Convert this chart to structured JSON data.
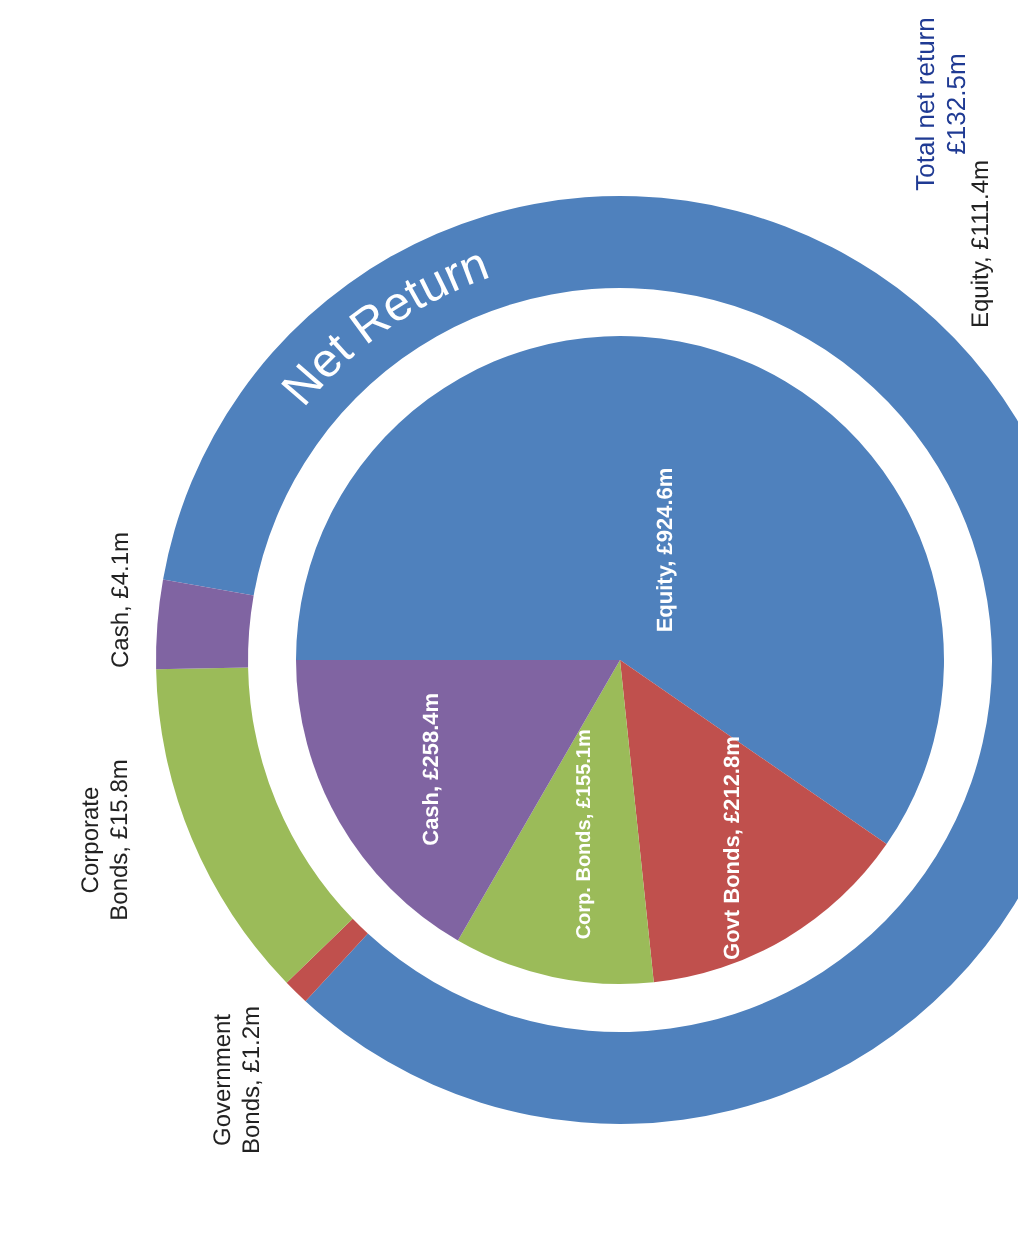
{
  "chart_data": [
    {
      "type": "donut",
      "title": "Net Return",
      "annotations": [
        "Total net return\n£132.5m"
      ],
      "categories": [
        "Equity",
        "Government Bonds",
        "Corporate Bonds",
        "Cash"
      ],
      "values": [
        111.4,
        1.2,
        15.8,
        4.1
      ],
      "value_labels": [
        "£111.4m",
        "£1.2m",
        "£15.8m",
        "£4.1m"
      ],
      "colors": [
        "#4f81bd",
        "#c0504d",
        "#9bbb59",
        "#8064a2"
      ]
    },
    {
      "type": "pie",
      "categories": [
        "Equity",
        "Govt Bonds",
        "Corp. Bonds",
        "Cash"
      ],
      "values": [
        924.6,
        212.8,
        155.1,
        258.4
      ],
      "value_labels": [
        "£924.6m",
        "£212.8m",
        "£155.1m",
        "£258.4m"
      ],
      "colors": [
        "#4f81bd",
        "#c0504d",
        "#9bbb59",
        "#8064a2"
      ]
    }
  ]
}
